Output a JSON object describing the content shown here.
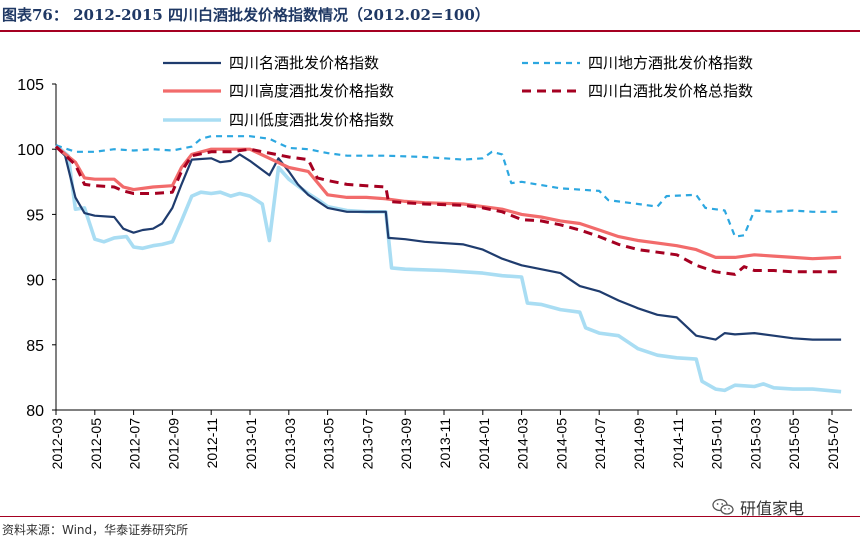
{
  "header": {
    "title": "图表76： 2012-2015 四川白酒批发价格指数情况（2012.02=100）"
  },
  "footer": {
    "source": "资料来源：Wind，华泰证券研究所"
  },
  "watermark": {
    "text": "研值家电",
    "icon": "wechat-logo-icon"
  },
  "colors": {
    "title": "#1f3864",
    "rule": "#a50021",
    "famous": "#1f3c6e",
    "local": "#2ca7e0",
    "high": "#f26b6b",
    "total": "#a50021",
    "low": "#a9ddf3"
  },
  "chart_data": {
    "type": "line",
    "title": "",
    "xlabel": "",
    "ylabel": "",
    "ylim": [
      80,
      105
    ],
    "yticks": [
      80,
      85,
      90,
      95,
      100,
      105
    ],
    "xlim": [
      "2012-03",
      "2015-07"
    ],
    "xticks": [
      "2012-03",
      "2012-05",
      "2012-07",
      "2012-09",
      "2012-11",
      "2013-01",
      "2013-03",
      "2013-05",
      "2013-07",
      "2013-09",
      "2013-11",
      "2014-01",
      "2014-03",
      "2014-05",
      "2014-07",
      "2014-09",
      "2014-11",
      "2015-01",
      "2015-03",
      "2015-05",
      "2015-07"
    ],
    "grid": false,
    "legend_position": "top",
    "series": [
      {
        "name": "四川名酒批发价格指数",
        "style": "solid",
        "points": [
          [
            "2012-03",
            100.2
          ],
          [
            "2012-03-15",
            99.5
          ],
          [
            "2012-04-01",
            96.3
          ],
          [
            "2012-04-15",
            95.1
          ],
          [
            "2012-05-01",
            94.9
          ],
          [
            "2012-06-01",
            94.8
          ],
          [
            "2012-06-15",
            93.9
          ],
          [
            "2012-07-01",
            93.6
          ],
          [
            "2012-07-15",
            93.8
          ],
          [
            "2012-08-01",
            93.9
          ],
          [
            "2012-08-15",
            94.3
          ],
          [
            "2012-09-01",
            95.5
          ],
          [
            "2012-09-15",
            97.3
          ],
          [
            "2012-10-01",
            99.2
          ],
          [
            "2012-11-01",
            99.3
          ],
          [
            "2012-11-15",
            99.0
          ],
          [
            "2012-12-01",
            99.1
          ],
          [
            "2012-12-15",
            99.6
          ],
          [
            "2013-01-01",
            99.1
          ],
          [
            "2013-02-01",
            98.0
          ],
          [
            "2013-02-15",
            99.3
          ],
          [
            "2013-03-01",
            98.3
          ],
          [
            "2013-03-15",
            97.3
          ],
          [
            "2013-04-01",
            96.5
          ],
          [
            "2013-05-01",
            95.5
          ],
          [
            "2013-06-01",
            95.2
          ],
          [
            "2013-07-01",
            95.2
          ],
          [
            "2013-08-01",
            95.2
          ],
          [
            "2013-08-05",
            93.2
          ],
          [
            "2013-09-01",
            93.1
          ],
          [
            "2013-10-01",
            92.9
          ],
          [
            "2013-12-01",
            92.7
          ],
          [
            "2014-01-01",
            92.3
          ],
          [
            "2014-02-01",
            91.6
          ],
          [
            "2014-03-01",
            91.1
          ],
          [
            "2014-04-01",
            90.8
          ],
          [
            "2014-05-01",
            90.5
          ],
          [
            "2014-06-01",
            89.5
          ],
          [
            "2014-07-01",
            89.1
          ],
          [
            "2014-08-01",
            88.4
          ],
          [
            "2014-09-01",
            87.8
          ],
          [
            "2014-10-01",
            87.3
          ],
          [
            "2014-11-01",
            87.1
          ],
          [
            "2014-12-01",
            85.7
          ],
          [
            "2015-01-01",
            85.4
          ],
          [
            "2015-01-15",
            85.9
          ],
          [
            "2015-02-01",
            85.8
          ],
          [
            "2015-03-01",
            85.9
          ],
          [
            "2015-04-01",
            85.7
          ],
          [
            "2015-05-01",
            85.5
          ],
          [
            "2015-06-01",
            85.4
          ],
          [
            "2015-07-15",
            85.4
          ]
        ]
      },
      {
        "name": "四川地方酒批发价格指数",
        "style": "dashed",
        "points": [
          [
            "2012-03",
            100.3
          ],
          [
            "2012-04-01",
            99.8
          ],
          [
            "2012-05-01",
            99.8
          ],
          [
            "2012-06-01",
            100.0
          ],
          [
            "2012-07-01",
            99.9
          ],
          [
            "2012-08-01",
            100.0
          ],
          [
            "2012-09-01",
            99.9
          ],
          [
            "2012-10-01",
            100.2
          ],
          [
            "2012-10-15",
            100.8
          ],
          [
            "2012-11-01",
            101.0
          ],
          [
            "2012-12-01",
            101.0
          ],
          [
            "2013-01-01",
            101.0
          ],
          [
            "2013-02-01",
            100.8
          ],
          [
            "2013-03-01",
            100.1
          ],
          [
            "2013-04-01",
            100.0
          ],
          [
            "2013-05-01",
            99.7
          ],
          [
            "2013-06-01",
            99.5
          ],
          [
            "2013-08-01",
            99.5
          ],
          [
            "2013-10-01",
            99.4
          ],
          [
            "2013-12-01",
            99.2
          ],
          [
            "2014-01-01",
            99.3
          ],
          [
            "2014-01-15",
            99.8
          ],
          [
            "2014-02-01",
            99.6
          ],
          [
            "2014-02-15",
            97.4
          ],
          [
            "2014-03-01",
            97.5
          ],
          [
            "2014-05-01",
            97.0
          ],
          [
            "2014-07-01",
            96.8
          ],
          [
            "2014-07-15",
            96.1
          ],
          [
            "2014-09-01",
            95.8
          ],
          [
            "2014-10-01",
            95.6
          ],
          [
            "2014-10-15",
            96.4
          ],
          [
            "2014-12-01",
            96.5
          ],
          [
            "2014-12-15",
            95.5
          ],
          [
            "2015-01-15",
            95.3
          ],
          [
            "2015-02-01",
            93.3
          ],
          [
            "2015-02-15",
            93.4
          ],
          [
            "2015-03-01",
            95.3
          ],
          [
            "2015-04-01",
            95.2
          ],
          [
            "2015-05-01",
            95.3
          ],
          [
            "2015-06-01",
            95.2
          ],
          [
            "2015-07-15",
            95.2
          ]
        ]
      },
      {
        "name": "四川高度酒批发价格指数",
        "style": "solid",
        "points": [
          [
            "2012-03",
            100.2
          ],
          [
            "2012-04-01",
            99.0
          ],
          [
            "2012-04-15",
            97.8
          ],
          [
            "2012-05-01",
            97.7
          ],
          [
            "2012-06-01",
            97.7
          ],
          [
            "2012-06-15",
            97.1
          ],
          [
            "2012-07-01",
            96.9
          ],
          [
            "2012-08-01",
            97.1
          ],
          [
            "2012-09-01",
            97.2
          ],
          [
            "2012-09-15",
            98.6
          ],
          [
            "2012-10-01",
            99.6
          ],
          [
            "2012-11-01",
            100.0
          ],
          [
            "2012-12-01",
            100.0
          ],
          [
            "2013-01-01",
            100.0
          ],
          [
            "2013-02-01",
            99.3
          ],
          [
            "2013-03-01",
            98.6
          ],
          [
            "2013-04-01",
            98.3
          ],
          [
            "2013-05-01",
            96.5
          ],
          [
            "2013-06-01",
            96.3
          ],
          [
            "2013-07-01",
            96.3
          ],
          [
            "2013-08-01",
            96.2
          ],
          [
            "2013-09-01",
            96.0
          ],
          [
            "2013-10-01",
            95.9
          ],
          [
            "2013-12-01",
            95.8
          ],
          [
            "2014-01-01",
            95.6
          ],
          [
            "2014-02-01",
            95.4
          ],
          [
            "2014-03-01",
            95.0
          ],
          [
            "2014-04-01",
            94.8
          ],
          [
            "2014-05-01",
            94.5
          ],
          [
            "2014-06-01",
            94.3
          ],
          [
            "2014-07-01",
            93.8
          ],
          [
            "2014-08-01",
            93.3
          ],
          [
            "2014-09-01",
            93.0
          ],
          [
            "2014-10-01",
            92.8
          ],
          [
            "2014-11-01",
            92.6
          ],
          [
            "2014-12-01",
            92.3
          ],
          [
            "2015-01-01",
            91.7
          ],
          [
            "2015-02-01",
            91.7
          ],
          [
            "2015-03-01",
            91.9
          ],
          [
            "2015-04-01",
            91.8
          ],
          [
            "2015-05-01",
            91.7
          ],
          [
            "2015-06-01",
            91.6
          ],
          [
            "2015-07-15",
            91.7
          ]
        ]
      },
      {
        "name": "四川白酒批发价格总指数",
        "style": "dashed",
        "points": [
          [
            "2012-03",
            100.2
          ],
          [
            "2012-04-01",
            98.8
          ],
          [
            "2012-04-15",
            97.3
          ],
          [
            "2012-05-01",
            97.2
          ],
          [
            "2012-06-01",
            97.1
          ],
          [
            "2012-06-15",
            96.8
          ],
          [
            "2012-07-01",
            96.6
          ],
          [
            "2012-08-01",
            96.6
          ],
          [
            "2012-09-01",
            96.7
          ],
          [
            "2012-09-15",
            98.3
          ],
          [
            "2012-10-01",
            99.5
          ],
          [
            "2012-11-01",
            99.8
          ],
          [
            "2012-12-01",
            99.8
          ],
          [
            "2013-01-01",
            100.0
          ],
          [
            "2013-02-01",
            99.7
          ],
          [
            "2013-03-01",
            99.4
          ],
          [
            "2013-04-01",
            99.2
          ],
          [
            "2013-04-15",
            97.8
          ],
          [
            "2013-05-01",
            97.6
          ],
          [
            "2013-06-01",
            97.3
          ],
          [
            "2013-07-01",
            97.2
          ],
          [
            "2013-08-01",
            97.1
          ],
          [
            "2013-08-05",
            96.0
          ],
          [
            "2013-09-01",
            95.9
          ],
          [
            "2013-10-01",
            95.8
          ],
          [
            "2013-12-01",
            95.7
          ],
          [
            "2014-01-01",
            95.5
          ],
          [
            "2014-02-01",
            95.2
          ],
          [
            "2014-03-01",
            94.6
          ],
          [
            "2014-04-01",
            94.5
          ],
          [
            "2014-05-01",
            94.2
          ],
          [
            "2014-06-01",
            93.8
          ],
          [
            "2014-07-01",
            93.3
          ],
          [
            "2014-08-01",
            92.7
          ],
          [
            "2014-09-01",
            92.3
          ],
          [
            "2014-10-01",
            92.1
          ],
          [
            "2014-11-01",
            91.9
          ],
          [
            "2014-12-01",
            91.1
          ],
          [
            "2015-01-01",
            90.6
          ],
          [
            "2015-02-01",
            90.4
          ],
          [
            "2015-02-15",
            91.0
          ],
          [
            "2015-03-01",
            90.7
          ],
          [
            "2015-04-01",
            90.7
          ],
          [
            "2015-05-01",
            90.6
          ],
          [
            "2015-06-01",
            90.6
          ],
          [
            "2015-07-15",
            90.6
          ]
        ]
      },
      {
        "name": "四川低度酒批发价格指数",
        "style": "solid",
        "points": [
          [
            "2012-03",
            100.3
          ],
          [
            "2012-03-20",
            99.5
          ],
          [
            "2012-04-01",
            95.4
          ],
          [
            "2012-04-15",
            95.5
          ],
          [
            "2012-05-01",
            93.1
          ],
          [
            "2012-05-15",
            92.9
          ],
          [
            "2012-06-01",
            93.2
          ],
          [
            "2012-06-20",
            93.3
          ],
          [
            "2012-07-01",
            92.5
          ],
          [
            "2012-07-15",
            92.4
          ],
          [
            "2012-08-01",
            92.6
          ],
          [
            "2012-08-15",
            92.7
          ],
          [
            "2012-09-01",
            92.9
          ],
          [
            "2012-09-15",
            94.5
          ],
          [
            "2012-10-01",
            96.4
          ],
          [
            "2012-10-15",
            96.7
          ],
          [
            "2012-11-01",
            96.6
          ],
          [
            "2012-11-15",
            96.7
          ],
          [
            "2012-12-01",
            96.4
          ],
          [
            "2012-12-15",
            96.6
          ],
          [
            "2013-01-01",
            96.4
          ],
          [
            "2013-01-20",
            95.8
          ],
          [
            "2013-02-01",
            93.0
          ],
          [
            "2013-02-15",
            98.6
          ],
          [
            "2013-03-01",
            97.7
          ],
          [
            "2013-03-20",
            97.0
          ],
          [
            "2013-04-01",
            96.6
          ],
          [
            "2013-04-20",
            96.0
          ],
          [
            "2013-05-01",
            95.6
          ],
          [
            "2013-06-01",
            95.3
          ],
          [
            "2013-07-01",
            95.2
          ],
          [
            "2013-08-01",
            95.2
          ],
          [
            "2013-08-10",
            90.9
          ],
          [
            "2013-09-01",
            90.8
          ],
          [
            "2013-11-01",
            90.7
          ],
          [
            "2014-01-01",
            90.5
          ],
          [
            "2014-02-01",
            90.3
          ],
          [
            "2014-03-01",
            90.2
          ],
          [
            "2014-03-10",
            88.2
          ],
          [
            "2014-04-01",
            88.1
          ],
          [
            "2014-05-01",
            87.7
          ],
          [
            "2014-06-01",
            87.5
          ],
          [
            "2014-06-10",
            86.3
          ],
          [
            "2014-07-01",
            85.9
          ],
          [
            "2014-08-01",
            85.7
          ],
          [
            "2014-09-01",
            84.7
          ],
          [
            "2014-10-01",
            84.2
          ],
          [
            "2014-11-01",
            84.0
          ],
          [
            "2014-12-01",
            83.9
          ],
          [
            "2014-12-10",
            82.2
          ],
          [
            "2015-01-01",
            81.6
          ],
          [
            "2015-01-15",
            81.5
          ],
          [
            "2015-02-01",
            81.9
          ],
          [
            "2015-03-01",
            81.8
          ],
          [
            "2015-03-15",
            82.0
          ],
          [
            "2015-04-01",
            81.7
          ],
          [
            "2015-05-01",
            81.6
          ],
          [
            "2015-06-01",
            81.6
          ],
          [
            "2015-07-15",
            81.4
          ]
        ]
      }
    ]
  }
}
